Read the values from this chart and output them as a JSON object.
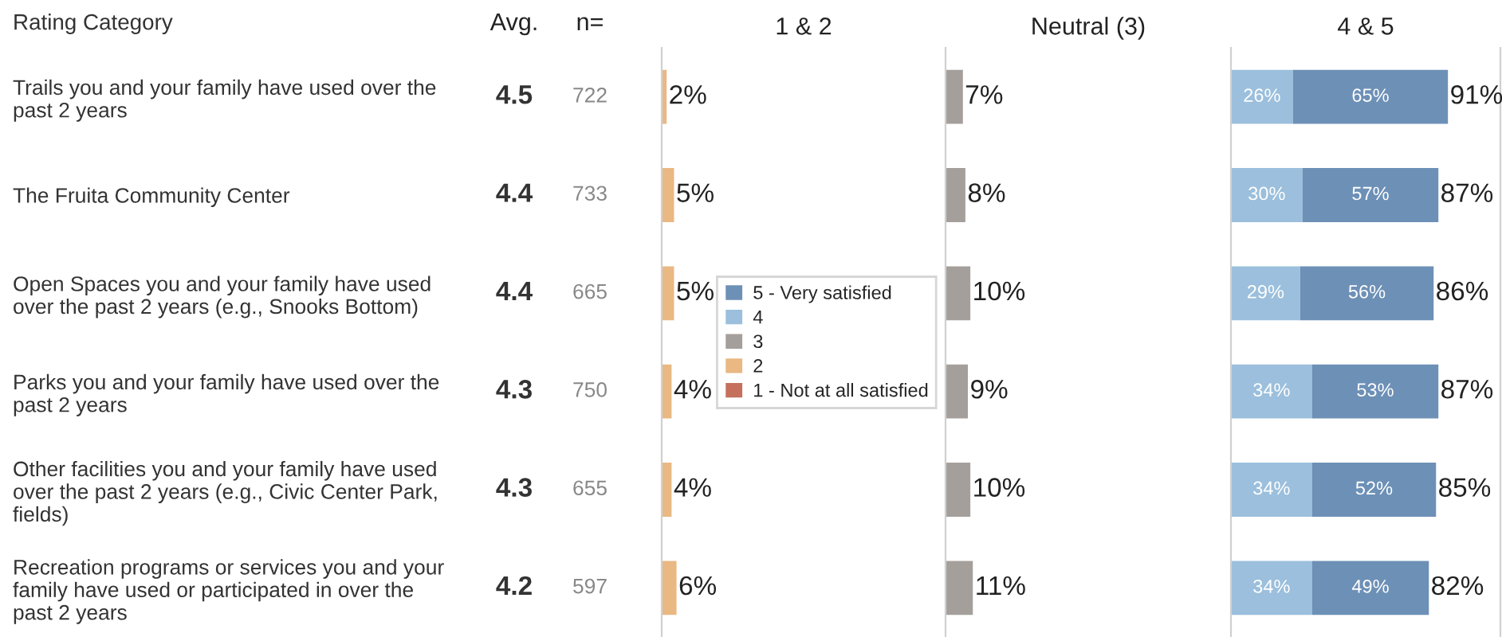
{
  "chart_data": [
    {
      "type": "other",
      "title": "Avg.",
      "annotations": [
        "4.5",
        "4.4",
        "4.4",
        "4.3",
        "4.3",
        "4.2"
      ]
    },
    {
      "type": "other",
      "title": "n=",
      "annotations": [
        "722",
        "733",
        "665",
        "750",
        "655",
        "597"
      ]
    },
    {
      "type": "bar",
      "orientation": "horizontal",
      "stacked": true,
      "title": "1 & 2",
      "ylabel": "Rating Category",
      "categories": [
        "Trails you and your family have used over the\npast 2 years",
        "The Fruita Community Center",
        "Open Spaces you and your family have used\nover the past 2 years (e.g., Snooks Bottom)",
        "Parks you and your family have used over the\npast 2 years",
        "Other facilities you and your family have used\nover the past 2 years (e.g., Civic Center Park,\nfields)",
        "Recreation programs or services you and your\nfamily have used or participated in over the\npast 2 years"
      ],
      "series": [
        {
          "name": "1 - Not at all satisfied",
          "color": "#c5705d",
          "values": [
            null,
            null,
            null,
            null,
            null,
            null
          ]
        },
        {
          "name": "2",
          "color": "#e9b883",
          "values": [
            2,
            5,
            5,
            4,
            4,
            6
          ],
          "value_labels": [
            "2%",
            "5%",
            "5%",
            "4%",
            "4%",
            "6%"
          ]
        }
      ],
      "xlim": [
        0,
        115
      ],
      "tick_labels": "y",
      "legend": "right"
    },
    {
      "type": "bar",
      "orientation": "horizontal",
      "title": "Neutral (3)",
      "categories": [
        null,
        null,
        null,
        null,
        null,
        null
      ],
      "series": [
        {
          "name": "3",
          "color": "#a59f9c",
          "values": [
            7,
            8,
            10,
            9,
            10,
            11
          ],
          "value_labels": [
            "7%",
            "8%",
            "10%",
            "9%",
            "10%",
            "11%"
          ]
        }
      ],
      "xlim": [
        0,
        115
      ],
      "tick_labels": false,
      "legend": "left"
    },
    {
      "type": "bar",
      "orientation": "horizontal",
      "stacked": true,
      "title": "4 & 5",
      "categories": [
        null,
        null,
        null,
        null,
        null,
        null
      ],
      "series": [
        {
          "name": "4",
          "color": "#9bbfdc",
          "values": [
            26,
            30,
            29,
            34,
            34,
            34
          ],
          "value_labels": [
            "26%",
            "30%",
            "29%",
            "34%",
            "34%",
            "34%"
          ]
        },
        {
          "name": "5 - Very satisfied",
          "color": "#6d90b6",
          "values": [
            65,
            57,
            56,
            53,
            52,
            49
          ],
          "value_labels": [
            "65%",
            "57%",
            "56%",
            "53%",
            "52%",
            "49%"
          ]
        }
      ],
      "totals": [
        "91%",
        "87%",
        "86%",
        "87%",
        "85%",
        "82%"
      ],
      "xlim": [
        0,
        113
      ],
      "tick_labels": false,
      "legend": "left"
    }
  ]
}
